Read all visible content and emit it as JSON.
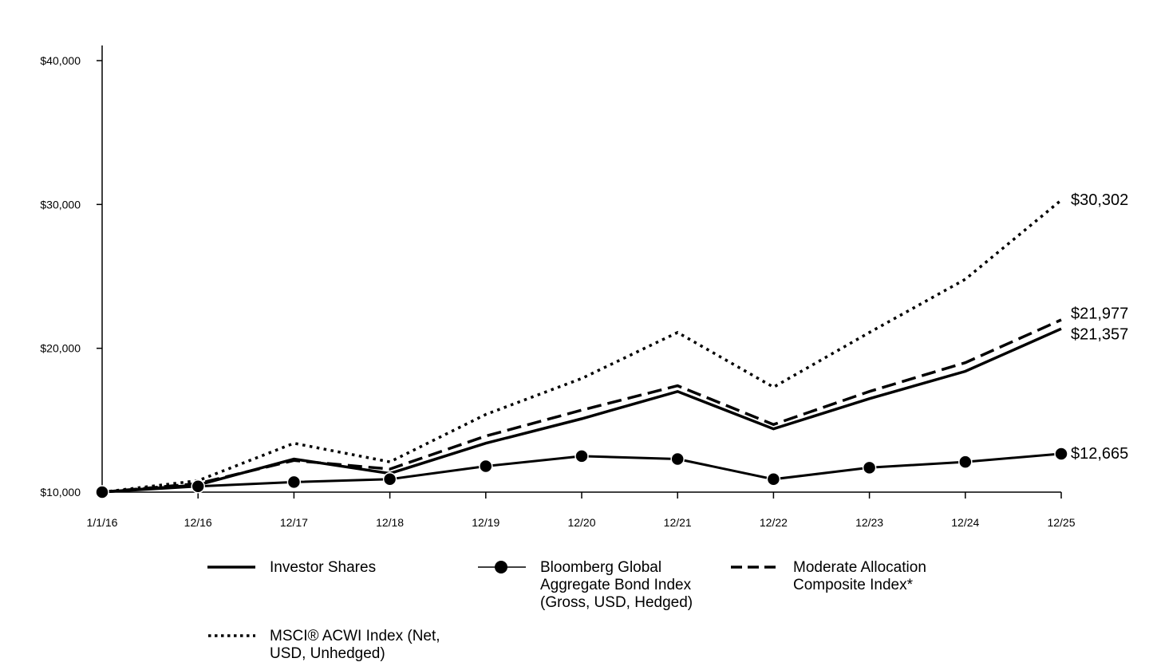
{
  "chart_data": {
    "type": "line",
    "title": "",
    "xlabel": "",
    "ylabel": "",
    "categories": [
      "1/1/16",
      "12/16",
      "12/17",
      "12/18",
      "12/19",
      "12/20",
      "12/21",
      "12/22",
      "12/23",
      "12/24",
      "12/25"
    ],
    "ylim": [
      10000,
      40000
    ],
    "yticks": [
      10000,
      20000,
      30000,
      40000
    ],
    "ytick_labels": [
      "$10,000",
      "$20,000",
      "$30,000",
      "$40,000"
    ],
    "grid": false,
    "legend_position": "bottom",
    "series": [
      {
        "name": "Investor Shares",
        "style": "solid",
        "values": [
          10000,
          10500,
          12300,
          11300,
          13400,
          15100,
          17000,
          14400,
          16500,
          18400,
          21357
        ],
        "end_label": "$21,357"
      },
      {
        "name": "Bloomberg Global Aggregate Bond Index (Gross, USD, Hedged)",
        "style": "solid-marker",
        "values": [
          10000,
          10400,
          10700,
          10900,
          11800,
          12500,
          12300,
          10900,
          11700,
          12100,
          12665
        ],
        "end_label": "$12,665"
      },
      {
        "name": "Moderate Allocation Composite Index*",
        "style": "dashed",
        "values": [
          10000,
          10600,
          12200,
          11600,
          13900,
          15700,
          17400,
          14700,
          17000,
          19000,
          21977
        ],
        "end_label": "$21,977"
      },
      {
        "name": "MSCI® ACWI Index (Net, USD, Unhedged)",
        "style": "dotted",
        "values": [
          10000,
          10800,
          13400,
          12100,
          15400,
          17900,
          21100,
          17300,
          21100,
          24800,
          30302
        ],
        "end_label": "$30,302"
      }
    ]
  },
  "legend": {
    "items": [
      {
        "label": "Investor Shares"
      },
      {
        "label": "Bloomberg Global\nAggregate Bond Index\n(Gross, USD, Hedged)"
      },
      {
        "label": "Moderate Allocation\nComposite Index*"
      },
      {
        "label": "MSCI® ACWI Index (Net,\nUSD, Unhedged)"
      }
    ]
  },
  "colors": {
    "line": "#000000",
    "background": "#ffffff"
  }
}
